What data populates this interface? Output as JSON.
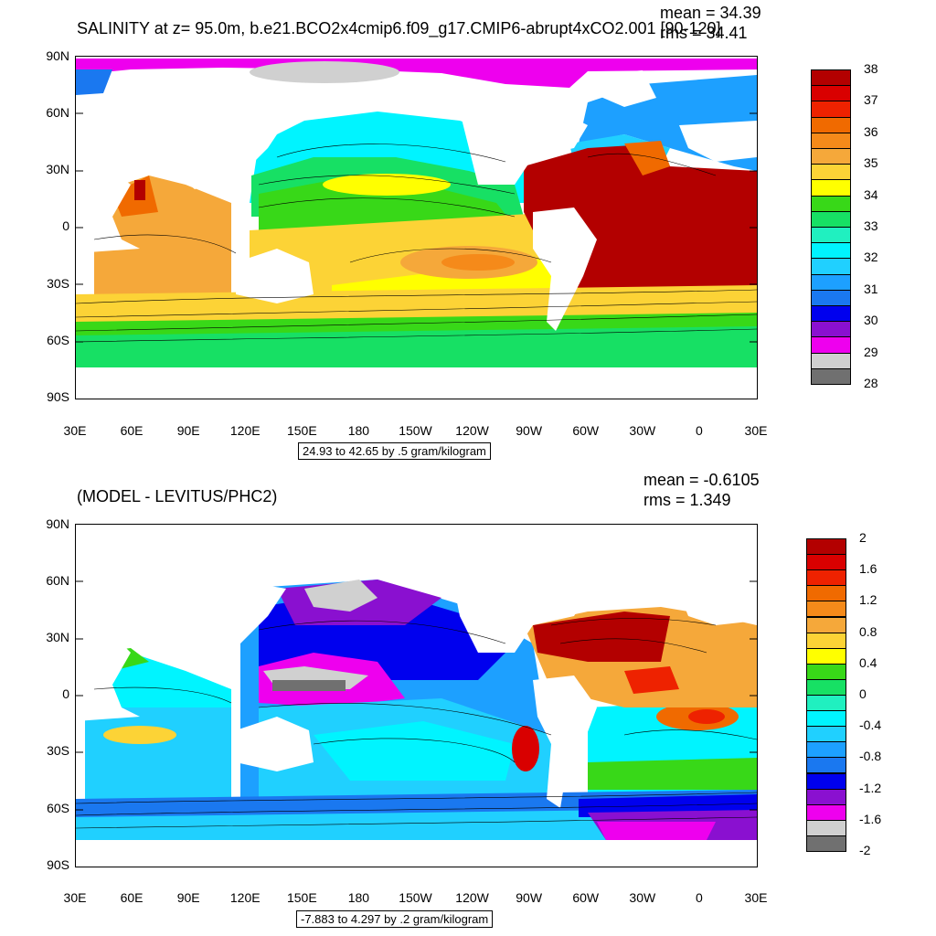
{
  "panels": [
    {
      "title": "SALINITY at z=  95.0m, b.e21.BCO2x4cmip6.f09_g17.CMIP6-abrupt4xCO2.001 [90-120]",
      "mean": "mean = 34.39",
      "rms": "rms = 34.41",
      "range_text": "24.93 to 42.65 by .5 gram/kilogram",
      "colorbar": {
        "colors": [
          "#b30000",
          "#d90000",
          "#ee2200",
          "#f06a00",
          "#f58a1a",
          "#f5a83a",
          "#fcd336",
          "#ffff00",
          "#38d818",
          "#17e064",
          "#20f0c0",
          "#00f4ff",
          "#20d0ff",
          "#1da0ff",
          "#1a78f0",
          "#0000ee",
          "#8a10d0",
          "#ee00ee",
          "#d0d0d0",
          "#707070"
        ],
        "labels": [
          "38",
          "37",
          "36",
          "35",
          "34",
          "33",
          "32",
          "31",
          "30",
          "29",
          "28"
        ]
      }
    },
    {
      "title": "(MODEL - LEVITUS/PHC2)",
      "mean": "mean = -0.6105",
      "rms": "rms = 1.349",
      "range_text": "-7.883 to 4.297 by .2 gram/kilogram",
      "colorbar": {
        "colors": [
          "#b30000",
          "#d90000",
          "#ee2200",
          "#f06a00",
          "#f58a1a",
          "#f5a83a",
          "#fcd336",
          "#ffff00",
          "#38d818",
          "#17e064",
          "#20f0c0",
          "#00f4ff",
          "#20d0ff",
          "#1da0ff",
          "#1a78f0",
          "#0000ee",
          "#8a10d0",
          "#ee00ee",
          "#d0d0d0",
          "#707070"
        ],
        "labels": [
          "2",
          "1.6",
          "1.2",
          "0.8",
          "0.4",
          "0",
          "-0.4",
          "-0.8",
          "-1.2",
          "-1.6",
          "-2"
        ]
      }
    }
  ],
  "lat_labels": [
    "90N",
    "60N",
    "30N",
    "0",
    "30S",
    "60S",
    "90S"
  ],
  "lon_labels": [
    "30E",
    "60E",
    "90E",
    "120E",
    "150E",
    "180",
    "150W",
    "120W",
    "90W",
    "60W",
    "30W",
    "0",
    "30E"
  ]
}
